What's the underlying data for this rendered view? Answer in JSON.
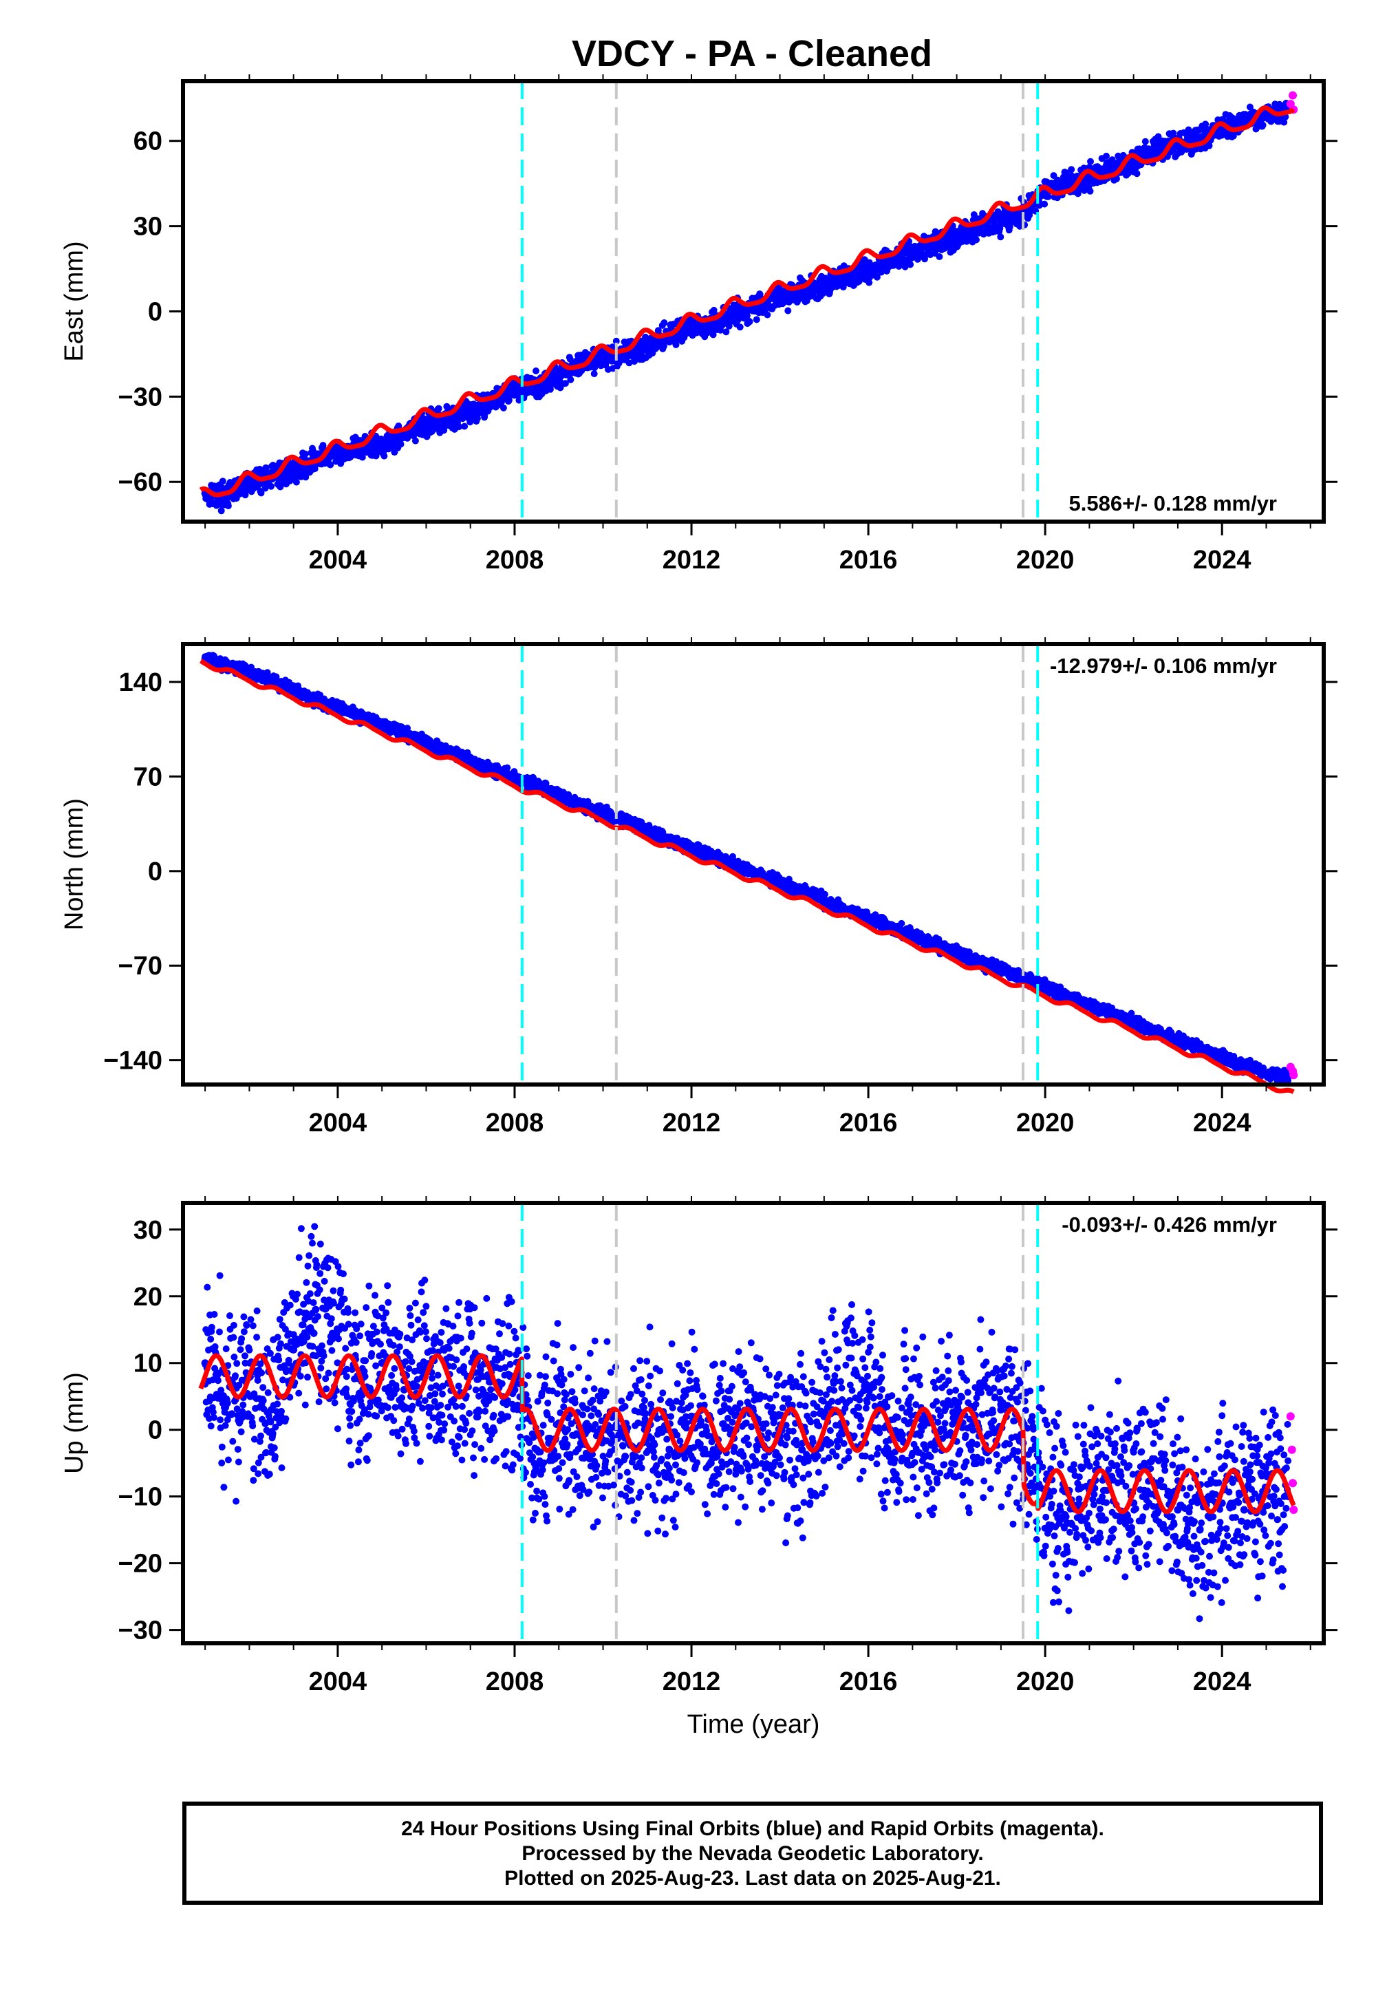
{
  "title": "VDCY  - PA - Cleaned",
  "footer": {
    "line1": "24 Hour Positions Using Final Orbits (blue) and Rapid Orbits (magenta).",
    "line2": "Processed by the Nevada Geodetic Laboratory.",
    "line3": "Plotted on 2025-Aug-23. Last data on 2025-Aug-21."
  },
  "colors": {
    "final_orbits": "#0000ff",
    "rapid_orbits": "#ff00ff",
    "model": "#ff0000",
    "antenna_change": "#00ffff",
    "equipment_change": "#c8c8c8"
  },
  "chart_data": [
    {
      "type": "scatter",
      "ylabel": "East (mm)",
      "xlabel": "",
      "xlim": [
        2000.5,
        2026.3
      ],
      "ylim": [
        -74,
        81
      ],
      "xticks": [
        2004,
        2008,
        2012,
        2016,
        2020,
        2024
      ],
      "yticks": [
        -60,
        -30,
        0,
        30,
        60
      ],
      "rate_text": "5.586+/- 0.128 mm/yr",
      "rate_position": "bottom-right",
      "series": [
        {
          "role": "final",
          "x": [
            2001.0,
            2001.5,
            2002.0,
            2002.5,
            2003.0,
            2003.5,
            2004.0,
            2004.5,
            2005.0,
            2005.5,
            2006.0,
            2006.5,
            2007.0,
            2007.5,
            2008.0,
            2008.5,
            2009.0,
            2009.5,
            2010.0,
            2010.5,
            2011.0,
            2011.5,
            2012.0,
            2012.5,
            2013.0,
            2013.5,
            2014.0,
            2014.5,
            2015.0,
            2015.5,
            2016.0,
            2016.5,
            2017.0,
            2017.5,
            2018.0,
            2018.5,
            2019.0,
            2019.5,
            2020.0,
            2020.5,
            2021.0,
            2021.5,
            2022.0,
            2022.5,
            2023.0,
            2023.5,
            2024.0,
            2024.5,
            2025.0,
            2025.5
          ],
          "y": [
            -64,
            -65,
            -60,
            -58,
            -56,
            -52,
            -50,
            -48,
            -47,
            -43,
            -40,
            -38,
            -35,
            -31,
            -27,
            -26,
            -23,
            -18,
            -16,
            -15,
            -12,
            -8,
            -6,
            -4,
            -1,
            2,
            5,
            7,
            9,
            12,
            14,
            18,
            21,
            24,
            26,
            30,
            31,
            35,
            42,
            45,
            47,
            50,
            53,
            57,
            58,
            61,
            64,
            67,
            69,
            71
          ]
        },
        {
          "role": "rapid",
          "x": [
            2025.55,
            2025.6,
            2025.62
          ],
          "y": [
            73,
            76,
            71
          ]
        }
      ],
      "model": {
        "rate": 5.586,
        "offset": -65.5,
        "start": 2000.9,
        "annual_amp": 2.2,
        "semiannual_amp": 0.6,
        "annual_phase": 0.3,
        "semiannual_phase": 0.2
      },
      "antenna_changes": [
        2008.17,
        2019.83
      ],
      "equipment_changes": [
        2010.3,
        2019.5
      ]
    },
    {
      "type": "scatter",
      "ylabel": "North (mm)",
      "xlabel": "",
      "xlim": [
        2000.5,
        2026.3
      ],
      "ylim": [
        -158,
        168
      ],
      "xticks": [
        2004,
        2008,
        2012,
        2016,
        2020,
        2024
      ],
      "yticks": [
        -140,
        -70,
        0,
        70,
        140
      ],
      "rate_text": "-12.979+/- 0.106 mm/yr",
      "rate_position": "top-right",
      "series": [
        {
          "role": "final",
          "x": [
            2001.0,
            2001.5,
            2002.0,
            2002.5,
            2003.0,
            2003.5,
            2004.0,
            2004.5,
            2005.0,
            2005.5,
            2006.0,
            2006.5,
            2007.0,
            2007.5,
            2008.0,
            2008.5,
            2009.0,
            2009.5,
            2010.0,
            2010.5,
            2011.0,
            2011.5,
            2012.0,
            2012.5,
            2013.0,
            2013.5,
            2014.0,
            2014.5,
            2015.0,
            2015.5,
            2016.0,
            2016.5,
            2017.0,
            2017.5,
            2018.0,
            2018.5,
            2019.0,
            2019.5,
            2020.0,
            2020.5,
            2021.0,
            2021.5,
            2022.0,
            2022.5,
            2023.0,
            2023.5,
            2024.0,
            2024.5,
            2025.0,
            2025.5
          ],
          "y": [
            157,
            152,
            148,
            141,
            134,
            127,
            121,
            115,
            108,
            102,
            95,
            88,
            82,
            75,
            69,
            63,
            56,
            49,
            43,
            37,
            30,
            23,
            17,
            11,
            4,
            -3,
            -9,
            -15,
            -22,
            -29,
            -35,
            -41,
            -48,
            -54,
            -61,
            -67,
            -73,
            -80,
            -86,
            -93,
            -99,
            -105,
            -112,
            -119,
            -125,
            -131,
            -138,
            -144,
            -150,
            -152
          ]
        },
        {
          "role": "rapid",
          "x": [
            2025.55,
            2025.6,
            2025.62
          ],
          "y": [
            -145,
            -148,
            -151
          ]
        }
      ],
      "model": {
        "rate": -12.979,
        "offset": 155.5,
        "start": 2000.9,
        "annual_amp": 1.8,
        "semiannual_amp": 0.5,
        "annual_phase": 0.6,
        "semiannual_phase": 0.1
      },
      "antenna_changes": [
        2008.17,
        2019.83
      ],
      "equipment_changes": [
        2010.3,
        2019.5
      ]
    },
    {
      "type": "scatter",
      "ylabel": "Up (mm)",
      "xlabel": "Time (year)",
      "xlim": [
        2000.5,
        2026.3
      ],
      "ylim": [
        -32,
        34
      ],
      "xticks": [
        2004,
        2008,
        2012,
        2016,
        2020,
        2024
      ],
      "yticks": [
        -30,
        -20,
        -10,
        0,
        10,
        20,
        30
      ],
      "rate_text": "-0.093+/- 0.426 mm/yr",
      "rate_position": "top-right",
      "series": [
        {
          "role": "final",
          "x": [
            2001.0,
            2001.5,
            2002.0,
            2002.5,
            2003.0,
            2003.5,
            2004.0,
            2004.5,
            2005.0,
            2005.5,
            2006.0,
            2006.5,
            2007.0,
            2007.5,
            2008.0,
            2008.5,
            2009.0,
            2009.5,
            2010.0,
            2010.5,
            2011.0,
            2011.5,
            2012.0,
            2012.5,
            2013.0,
            2013.5,
            2014.0,
            2014.5,
            2015.0,
            2015.5,
            2016.0,
            2016.5,
            2017.0,
            2017.5,
            2018.0,
            2018.5,
            2019.0,
            2019.5,
            2020.0,
            2020.5,
            2021.0,
            2021.5,
            2022.0,
            2022.5,
            2023.0,
            2023.5,
            2024.0,
            2024.5,
            2025.0,
            2025.5
          ],
          "y": [
            10,
            4,
            8,
            3,
            12,
            18,
            15,
            8,
            10,
            6,
            9,
            7,
            8,
            5,
            6,
            -3,
            1,
            -2,
            0,
            -4,
            0,
            -3,
            2,
            -1,
            0,
            1,
            -1,
            -3,
            2,
            4,
            6,
            0,
            1,
            -2,
            2,
            0,
            3,
            -2,
            -10,
            -14,
            -9,
            -7,
            -11,
            -8,
            -12,
            -15,
            -11,
            -12,
            -9,
            -10
          ]
        },
        {
          "role": "rapid",
          "x": [
            2025.55,
            2025.58,
            2025.6,
            2025.62
          ],
          "y": [
            2,
            -3,
            -8,
            -12
          ]
        }
      ],
      "model": {
        "start": 2000.9,
        "annual_amp": 3.1,
        "segments": [
          {
            "from": 2000.9,
            "to": 2008.17,
            "offset": 8.0
          },
          {
            "from": 2008.17,
            "to": 2019.5,
            "offset": 0.0
          },
          {
            "from": 2019.5,
            "to": 2019.83,
            "offset": -8.0
          },
          {
            "from": 2019.83,
            "to": 2025.65,
            "offset": -9.2
          }
        ]
      },
      "antenna_changes": [
        2008.17,
        2019.83
      ],
      "equipment_changes": [
        2010.3,
        2019.5
      ]
    }
  ]
}
